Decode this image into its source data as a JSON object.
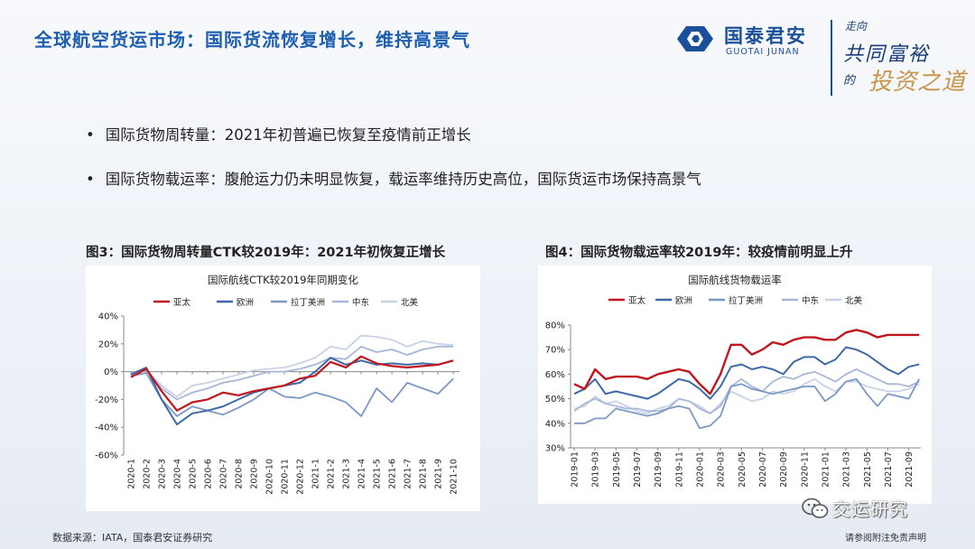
{
  "header": {
    "title": "全球航空货运市场：国际货流恢复增长，维持高景气",
    "logo_cn": "国泰君安",
    "logo_en": "GUOTAI JUNAN",
    "slogan_line1": "走向",
    "slogan_line2": "共同富裕",
    "slogan_line3": "的",
    "slogan_line4": "投资之道"
  },
  "bullets": [
    "国际货物周转量：2021年初普遍已恢复至疫情前正增长",
    "国际货物载运率：腹舱运力仍未明显恢复，载运率维持历史高位，国际货运市场保持高景气"
  ],
  "bullet_symbol": "•",
  "figures": [
    {
      "caption": "图3：国际货物周转量CTK较2019年：2021年初恢复正增长"
    },
    {
      "caption": "图4：国际货物载运率较2019年：较疫情前明显上升"
    }
  ],
  "footer": {
    "source": "数据来源：IATA，国泰君安证券研究",
    "disclaimer": "请参阅附注免责声明",
    "watermark": "交运研究"
  },
  "colors": {
    "asia_pacific": "#c0161e",
    "europe": "#3d6aa5",
    "latin_america": "#7c98c4",
    "middle_east": "#a6b7d8",
    "north_america": "#c8d2e6",
    "title": "#1f5fb0"
  },
  "chart_data": [
    {
      "type": "line",
      "title": "国际航线CTK较2019年同期变化",
      "x": [
        "2020-1",
        "2020-2",
        "2020-3",
        "2020-4",
        "2020-5",
        "2020-6",
        "2020-7",
        "2020-8",
        "2020-9",
        "2020-10",
        "2020-11",
        "2020-12",
        "2021-1",
        "2021-2",
        "2021-3",
        "2021-4",
        "2021-5",
        "2021-6",
        "2021-7",
        "2021-8",
        "2021-9",
        "2021-10"
      ],
      "x_tick_labels": [
        "2020-1",
        "2020-2",
        "2020-3",
        "2020-4",
        "2020-5",
        "2020-6",
        "2020-7",
        "2020-8",
        "2020-9",
        "2020-10",
        "2020-11",
        "2020-12",
        "2021-1",
        "2021-2",
        "2021-3",
        "2021-4",
        "2021-5",
        "2021-6",
        "2021-7",
        "2021-8",
        "2021-9",
        "2021-10"
      ],
      "ylim": [
        -60,
        40
      ],
      "y_ticks": [
        40,
        20,
        0,
        -20,
        -40,
        -60
      ],
      "y_tick_labels": [
        "40%",
        "20%",
        "0%",
        "-20%",
        "-40%",
        "-60%"
      ],
      "legend_position": "top",
      "grid": false,
      "series": [
        {
          "name": "亚太",
          "color": "#c0161e",
          "width": 2.2,
          "values": [
            -4,
            2,
            -14,
            -28,
            -22,
            -20,
            -15,
            -17,
            -14,
            -12,
            -10,
            -5,
            -3,
            7,
            3,
            11,
            6,
            4,
            3,
            4,
            5,
            8
          ]
        },
        {
          "name": "欧洲",
          "color": "#3d6aa5",
          "width": 2.0,
          "values": [
            -2,
            3,
            -20,
            -38,
            -30,
            -28,
            -25,
            -20,
            -15,
            -12,
            -10,
            -8,
            0,
            10,
            5,
            8,
            5,
            6,
            5,
            6,
            5,
            8
          ]
        },
        {
          "name": "拉丁美洲",
          "color": "#7c98c4",
          "width": 1.8,
          "values": [
            -3,
            -1,
            -20,
            -32,
            -25,
            -28,
            -31,
            -26,
            -20,
            -12,
            -18,
            -19,
            -15,
            -18,
            -22,
            -32,
            -12,
            -22,
            -8,
            -12,
            -16,
            -5
          ]
        },
        {
          "name": "中东",
          "color": "#a6b7d8",
          "width": 1.8,
          "values": [
            -1,
            2,
            -12,
            -20,
            -15,
            -12,
            -8,
            -6,
            -3,
            0,
            0,
            2,
            5,
            10,
            9,
            18,
            14,
            16,
            12,
            16,
            18,
            18
          ]
        },
        {
          "name": "北美",
          "color": "#c8d2e6",
          "width": 1.8,
          "values": [
            -2,
            1,
            -10,
            -18,
            -10,
            -8,
            -5,
            -2,
            1,
            2,
            3,
            6,
            10,
            18,
            16,
            26,
            25,
            23,
            18,
            22,
            20,
            19
          ]
        }
      ]
    },
    {
      "type": "line",
      "title": "国际航线货物载运率",
      "x": [
        "2019-01",
        "2019-02",
        "2019-03",
        "2019-04",
        "2019-05",
        "2019-06",
        "2019-07",
        "2019-08",
        "2019-09",
        "2019-10",
        "2019-11",
        "2019-12",
        "2020-01",
        "2020-02",
        "2020-03",
        "2020-04",
        "2020-05",
        "2020-06",
        "2020-07",
        "2020-08",
        "2020-09",
        "2020-10",
        "2020-11",
        "2020-12",
        "2021-01",
        "2021-02",
        "2021-03",
        "2021-04",
        "2021-05",
        "2021-06",
        "2021-07",
        "2021-08",
        "2021-09",
        "2021-10"
      ],
      "x_tick_labels": [
        "2019-01",
        "2019-03",
        "2019-05",
        "2019-07",
        "2019-09",
        "2019-11",
        "2020-01",
        "2020-03",
        "2020-05",
        "2020-07",
        "2020-09",
        "2020-11",
        "2021-01",
        "2021-03",
        "2021-05",
        "2021-07",
        "2021-09"
      ],
      "ylim": [
        30,
        80
      ],
      "y_ticks": [
        80,
        70,
        60,
        50,
        40,
        30
      ],
      "y_tick_labels": [
        "80%",
        "70%",
        "60%",
        "50%",
        "40%",
        "30%"
      ],
      "legend_position": "top",
      "grid": false,
      "series": [
        {
          "name": "亚太",
          "color": "#c0161e",
          "width": 2.4,
          "values": [
            56,
            54,
            62,
            58,
            59,
            59,
            59,
            58,
            60,
            61,
            62,
            61,
            56,
            52,
            60,
            72,
            72,
            68,
            70,
            73,
            72,
            74,
            75,
            75,
            74,
            74,
            77,
            78,
            77,
            75,
            76,
            76,
            76,
            76
          ]
        },
        {
          "name": "欧洲",
          "color": "#3d6aa5",
          "width": 2.0,
          "values": [
            52,
            54,
            58,
            52,
            53,
            52,
            51,
            50,
            52,
            55,
            58,
            57,
            54,
            50,
            55,
            63,
            64,
            62,
            63,
            62,
            60,
            65,
            67,
            67,
            64,
            66,
            71,
            70,
            68,
            65,
            62,
            60,
            63,
            64
          ]
        },
        {
          "name": "拉丁美洲",
          "color": "#7c98c4",
          "width": 1.8,
          "values": [
            40,
            40,
            42,
            42,
            46,
            45,
            44,
            43,
            44,
            46,
            47,
            46,
            38,
            39,
            43,
            55,
            56,
            54,
            53,
            52,
            53,
            54,
            55,
            55,
            49,
            52,
            57,
            58,
            52,
            47,
            52,
            51,
            50,
            58
          ]
        },
        {
          "name": "中东",
          "color": "#a6b7d8",
          "width": 1.8,
          "values": [
            45,
            48,
            50,
            48,
            47,
            46,
            46,
            45,
            45,
            46,
            50,
            49,
            46,
            44,
            47,
            55,
            58,
            55,
            53,
            57,
            59,
            58,
            60,
            61,
            59,
            57,
            60,
            62,
            60,
            58,
            56,
            56,
            55,
            57
          ]
        },
        {
          "name": "北美",
          "color": "#c8d2e6",
          "width": 1.8,
          "values": [
            46,
            47,
            51,
            48,
            49,
            47,
            45,
            44,
            46,
            47,
            50,
            49,
            47,
            44,
            48,
            53,
            51,
            49,
            50,
            53,
            52,
            53,
            56,
            58,
            55,
            53,
            57,
            57,
            55,
            54,
            53,
            53,
            54,
            56
          ]
        }
      ]
    }
  ]
}
